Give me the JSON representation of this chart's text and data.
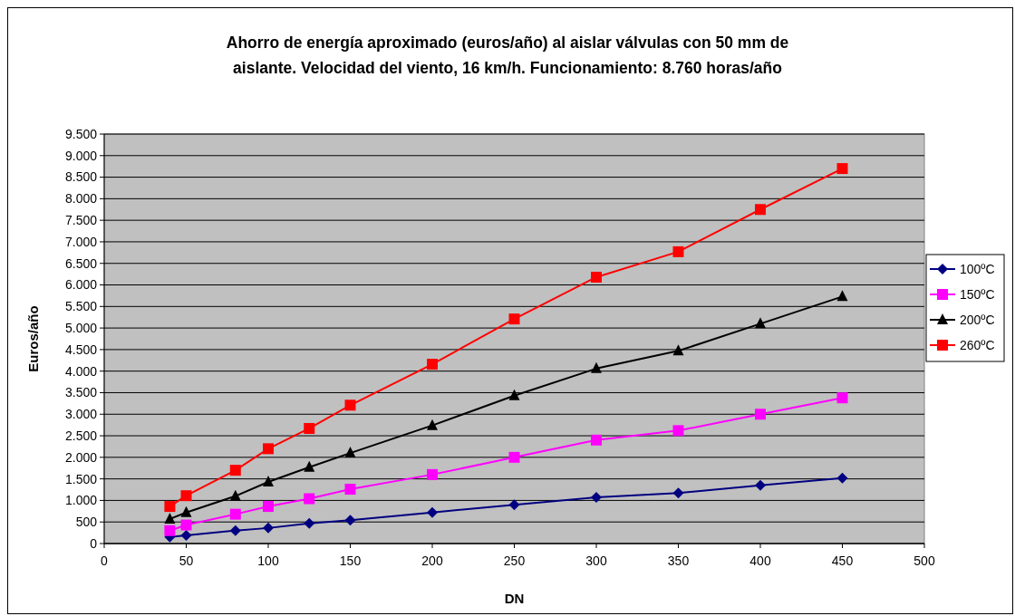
{
  "chart_data": {
    "type": "line",
    "title": "Ahorro de energía aproximado (euros/año) al aislar válvulas con 50 mm de aislante.  Velocidad del viento, 16 km/h. Funcionamiento: 8.760 horas/año",
    "xlabel": "DN",
    "ylabel": "Euros/año",
    "x": [
      40,
      50,
      80,
      100,
      125,
      150,
      200,
      250,
      300,
      350,
      400,
      450
    ],
    "series": [
      {
        "name": "100ºC",
        "color": "#000080",
        "marker": "diamond",
        "values": [
          150,
          190,
          300,
          360,
          470,
          540,
          720,
          900,
          1070,
          1170,
          1350,
          1520
        ]
      },
      {
        "name": "150ºC",
        "color": "#ff00ff",
        "marker": "square",
        "values": [
          300,
          430,
          680,
          860,
          1040,
          1260,
          1600,
          2000,
          2400,
          2620,
          3000,
          3380
        ]
      },
      {
        "name": "200ºC",
        "color": "#000000",
        "marker": "triangle",
        "values": [
          570,
          720,
          1100,
          1430,
          1770,
          2100,
          2740,
          3430,
          4060,
          4470,
          5100,
          5730
        ]
      },
      {
        "name": "260ºC",
        "color": "#ff0000",
        "marker": "square",
        "values": [
          860,
          1110,
          1700,
          2200,
          2670,
          3210,
          4160,
          5210,
          6180,
          6770,
          7750,
          8700
        ]
      }
    ],
    "xlim": [
      0,
      500
    ],
    "xticks": [
      0,
      50,
      100,
      150,
      200,
      250,
      300,
      350,
      400,
      450,
      500
    ],
    "ylim": [
      0,
      9500
    ],
    "yticks": [
      0,
      500,
      {
        "value": 1000,
        "label": "1.000"
      },
      {
        "value": 1500,
        "label": "1.500"
      },
      {
        "value": 2000,
        "label": "2.000"
      },
      {
        "value": 2500,
        "label": "2.500"
      },
      {
        "value": 3000,
        "label": "3.000"
      },
      {
        "value": 3500,
        "label": "3.500"
      },
      {
        "value": 4000,
        "label": "4.000"
      },
      {
        "value": 4500,
        "label": "4.500"
      },
      {
        "value": 5000,
        "label": "5.000"
      },
      {
        "value": 5500,
        "label": "5.500"
      },
      {
        "value": 6000,
        "label": "6.000"
      },
      {
        "value": 6500,
        "label": "6.500"
      },
      {
        "value": 7000,
        "label": "7.000"
      },
      {
        "value": 7500,
        "label": "7.500"
      },
      {
        "value": 8000,
        "label": "8.000"
      },
      {
        "value": 8500,
        "label": "8.500"
      },
      {
        "value": 9000,
        "label": "9.000"
      },
      {
        "value": 9500,
        "label": "9.500"
      }
    ],
    "grid": "y",
    "legend": "right",
    "line_style": "solid"
  }
}
